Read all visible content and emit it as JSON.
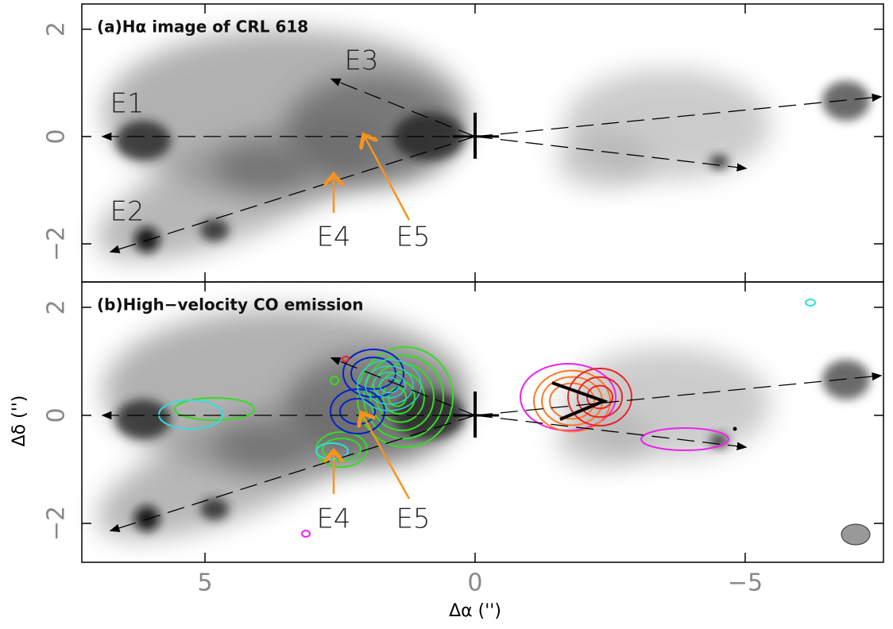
{
  "figure": {
    "xaxis": {
      "label": "Δα ('')",
      "lim": [
        7.28,
        -7.56
      ],
      "ticks": [
        5,
        0,
        {
          "value": -5,
          "label": "−5"
        }
      ]
    },
    "yaxis": {
      "label": "Δδ ('')"
    },
    "panels": [
      {
        "title": "(a)Hα image of CRL 618",
        "ylim": [
          -2.71,
          2.47
        ],
        "yticks": [
          2,
          0,
          {
            "value": -2,
            "label": "−2"
          }
        ],
        "labels": [
          "E1",
          "E2",
          "E3",
          "E4",
          "E5"
        ]
      },
      {
        "title": "(b)High−velocity CO emission",
        "ylim": [
          -2.72,
          2.47
        ],
        "yticks": [
          2,
          0,
          {
            "value": -2,
            "label": "−2"
          }
        ],
        "labels": [
          "E4",
          "E5"
        ]
      }
    ]
  }
}
